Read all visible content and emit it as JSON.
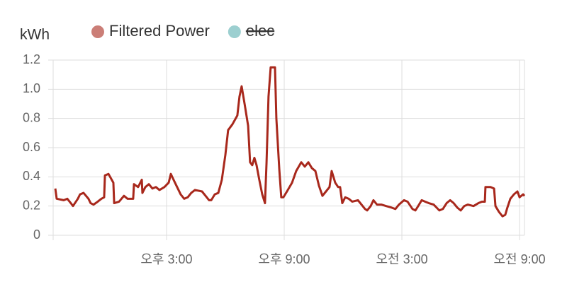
{
  "chart_data": {
    "type": "line",
    "y_unit_label": "kWh",
    "x": [
      9.33,
      9.4,
      9.76,
      9.94,
      10.12,
      10.23,
      10.48,
      10.59,
      10.77,
      11.02,
      11.13,
      11.28,
      11.49,
      11.68,
      11.82,
      11.86,
      12.04,
      12.29,
      12.33,
      12.58,
      12.83,
      13.01,
      13.3,
      13.34,
      13.55,
      13.74,
      13.77,
      13.92,
      14.1,
      14.28,
      14.46,
      14.64,
      14.89,
      15.11,
      15.22,
      15.36,
      15.54,
      15.72,
      15.9,
      16.08,
      16.26,
      16.45,
      16.81,
      16.99,
      17.17,
      17.28,
      17.46,
      17.64,
      17.82,
      18.0,
      18.14,
      18.36,
      18.61,
      18.72,
      18.83,
      18.98,
      19.16,
      19.26,
      19.37,
      19.48,
      19.59,
      19.73,
      19.88,
      20.02,
      20.1,
      20.2,
      20.31,
      20.53,
      20.6,
      20.75,
      20.85,
      20.96,
      21.14,
      21.4,
      21.61,
      21.87,
      22.05,
      22.23,
      22.41,
      22.59,
      22.77,
      22.95,
      23.13,
      23.31,
      23.42,
      23.6,
      23.75,
      23.85,
      23.96,
      24.11,
      24.29,
      24.47,
      24.76,
      24.94,
      25.12,
      25.23,
      25.41,
      25.55,
      25.73,
      25.95,
      26.2,
      26.46,
      26.67,
      26.85,
      27.11,
      27.29,
      27.54,
      27.69,
      27.83,
      28.01,
      28.19,
      28.37,
      28.62,
      28.91,
      29.09,
      29.28,
      29.46,
      29.64,
      29.82,
      30.0,
      30.18,
      30.36,
      30.65,
      30.9,
      31.08,
      31.23,
      31.26,
      31.52,
      31.7,
      31.77,
      31.95,
      32.13,
      32.27,
      32.38,
      32.53,
      32.71,
      32.89,
      33.0,
      33.18,
      33.25
    ],
    "series": [
      {
        "name": "Filtered Power",
        "color": "#a8281c",
        "values": [
          0.32,
          0.25,
          0.24,
          0.25,
          0.22,
          0.2,
          0.25,
          0.28,
          0.29,
          0.25,
          0.22,
          0.21,
          0.23,
          0.25,
          0.26,
          0.41,
          0.42,
          0.36,
          0.22,
          0.23,
          0.27,
          0.25,
          0.25,
          0.35,
          0.33,
          0.38,
          0.29,
          0.33,
          0.35,
          0.32,
          0.33,
          0.31,
          0.33,
          0.36,
          0.42,
          0.38,
          0.33,
          0.28,
          0.25,
          0.26,
          0.29,
          0.31,
          0.3,
          0.27,
          0.24,
          0.24,
          0.28,
          0.29,
          0.38,
          0.55,
          0.72,
          0.76,
          0.82,
          0.95,
          1.02,
          0.9,
          0.75,
          0.5,
          0.48,
          0.53,
          0.48,
          0.38,
          0.28,
          0.22,
          0.5,
          0.95,
          1.15,
          1.15,
          0.8,
          0.45,
          0.26,
          0.26,
          0.3,
          0.36,
          0.44,
          0.5,
          0.47,
          0.5,
          0.46,
          0.44,
          0.34,
          0.27,
          0.3,
          0.33,
          0.44,
          0.36,
          0.33,
          0.33,
          0.22,
          0.26,
          0.25,
          0.23,
          0.24,
          0.21,
          0.18,
          0.17,
          0.2,
          0.24,
          0.21,
          0.21,
          0.2,
          0.19,
          0.18,
          0.21,
          0.24,
          0.23,
          0.18,
          0.17,
          0.2,
          0.24,
          0.23,
          0.22,
          0.21,
          0.17,
          0.18,
          0.22,
          0.24,
          0.22,
          0.19,
          0.17,
          0.2,
          0.21,
          0.2,
          0.22,
          0.23,
          0.23,
          0.33,
          0.33,
          0.32,
          0.2,
          0.16,
          0.13,
          0.14,
          0.19,
          0.25,
          0.28,
          0.3,
          0.26,
          0.28,
          0.27
        ]
      },
      {
        "name": "elec",
        "color": "#9ccfd0",
        "hidden": true
      }
    ],
    "xlim": [
      9.22,
      33.25
    ],
    "xticks": [
      {
        "value": 15,
        "label": "오후 3:00"
      },
      {
        "value": 21,
        "label": "오후 9:00"
      },
      {
        "value": 27,
        "label": "오전 3:00"
      },
      {
        "value": 33,
        "label": "오전 9:00"
      }
    ],
    "ylim": [
      0,
      1.2
    ],
    "yticks": [
      0,
      0.2,
      0.4,
      0.6,
      0.8,
      {
        "value": 1,
        "label": "1.0"
      },
      1.2
    ],
    "grid": true
  }
}
